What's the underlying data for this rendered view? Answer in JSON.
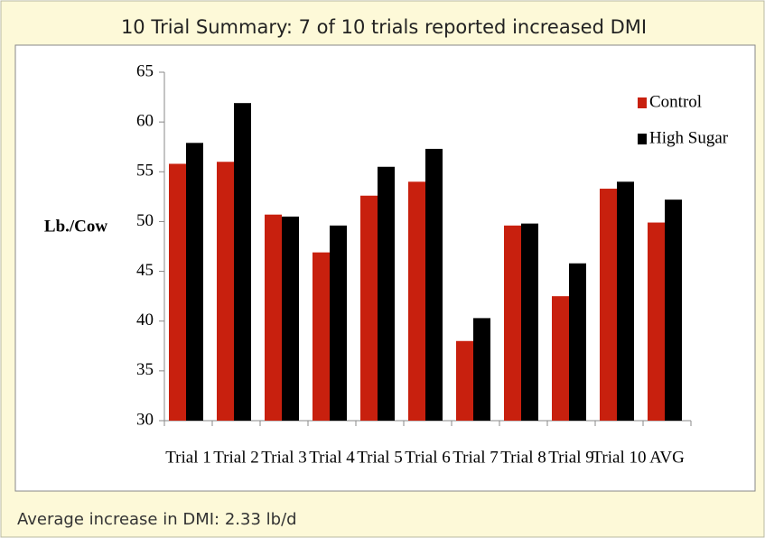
{
  "chart_data": {
    "type": "bar",
    "title": "10 Trial Summary: 7 of 10 trials reported increased DMI",
    "ylabel": "Lb./Cow",
    "footnote": "Average increase in DMI: 2.33 lb/d",
    "categories": [
      "Trial 1",
      "Trial 2",
      "Trial 3",
      "Trial 4",
      "Trial 5",
      "Trial 6",
      "Trial 7",
      "Trial 8",
      "Trial 9",
      "Trial 10",
      "AVG"
    ],
    "series": [
      {
        "name": "Control",
        "color": "#c8200e",
        "values": [
          55.8,
          56,
          50.7,
          46.9,
          52.6,
          54,
          38,
          49.6,
          42.5,
          53.3,
          49.9
        ]
      },
      {
        "name": "High Sugar",
        "color": "#000000",
        "values": [
          57.9,
          61.9,
          50.5,
          49.6,
          55.5,
          57.3,
          40.3,
          49.8,
          45.8,
          54,
          52.2
        ]
      }
    ],
    "ylim": [
      30,
      65
    ],
    "yticks": [
      30,
      35,
      40,
      45,
      50,
      55,
      60,
      65
    ],
    "grid": false,
    "legend": "upper right"
  }
}
